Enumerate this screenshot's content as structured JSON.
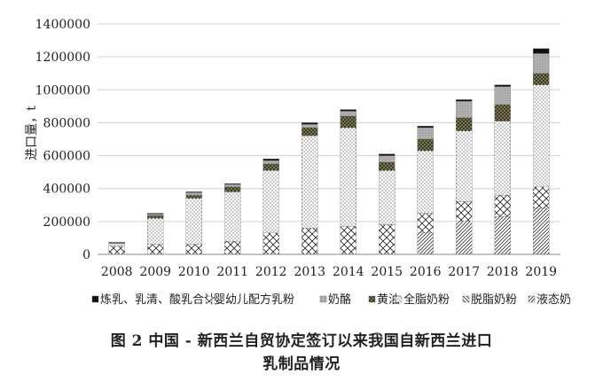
{
  "chart_data": {
    "type": "bar",
    "stacked": true,
    "categories": [
      "2008",
      "2009",
      "2010",
      "2011",
      "2012",
      "2013",
      "2014",
      "2015",
      "2016",
      "2017",
      "2018",
      "2019"
    ],
    "ylabel": "进口量，t",
    "ylim": [
      0,
      1400000
    ],
    "yticks": [
      "0",
      "200000",
      "400000",
      "600000",
      "800000",
      "1000000",
      "1200000",
      "1400000"
    ],
    "grid": true,
    "legend_position": "bottom",
    "series": [
      {
        "name": "液态奶",
        "pattern": "diag-right",
        "values": [
          0,
          0,
          0,
          0,
          0,
          0,
          0,
          0,
          130000,
          200000,
          230000,
          280000
        ]
      },
      {
        "name": "脱脂奶粉",
        "pattern": "diag-left",
        "values": [
          0,
          0,
          0,
          0,
          0,
          0,
          0,
          0,
          0,
          0,
          0,
          0
        ]
      },
      {
        "name": "婴幼儿配方乳粉",
        "pattern": "crosshatch",
        "values": [
          50000,
          60000,
          60000,
          80000,
          130000,
          160000,
          170000,
          180000,
          120000,
          120000,
          130000,
          130000
        ]
      },
      {
        "name": "全脂奶粉",
        "pattern": "dots",
        "values": [
          15000,
          160000,
          280000,
          300000,
          380000,
          560000,
          600000,
          330000,
          380000,
          430000,
          450000,
          620000
        ]
      },
      {
        "name": "黄油",
        "pattern": "dark-dots",
        "values": [
          3000,
          15000,
          20000,
          30000,
          40000,
          50000,
          70000,
          50000,
          70000,
          80000,
          100000,
          70000
        ]
      },
      {
        "name": "奶酪",
        "pattern": "gray",
        "values": [
          5000,
          10000,
          15000,
          15000,
          20000,
          20000,
          30000,
          40000,
          70000,
          100000,
          110000,
          120000
        ]
      },
      {
        "name": "炼乳、乳清、酸乳合计",
        "pattern": "black",
        "values": [
          2000,
          5000,
          5000,
          5000,
          10000,
          10000,
          10000,
          10000,
          10000,
          10000,
          10000,
          30000
        ]
      }
    ],
    "legend_order": [
      "炼乳、乳清、酸乳合计",
      "婴幼儿配方乳粉",
      "奶酪",
      "黄油",
      "全脂奶粉",
      "脱脂奶粉",
      "液态奶"
    ]
  },
  "caption_line1": "图 2  中国 - 新西兰自贸协定签订以来我国自新西兰进口",
  "caption_line2": "乳制品情况"
}
